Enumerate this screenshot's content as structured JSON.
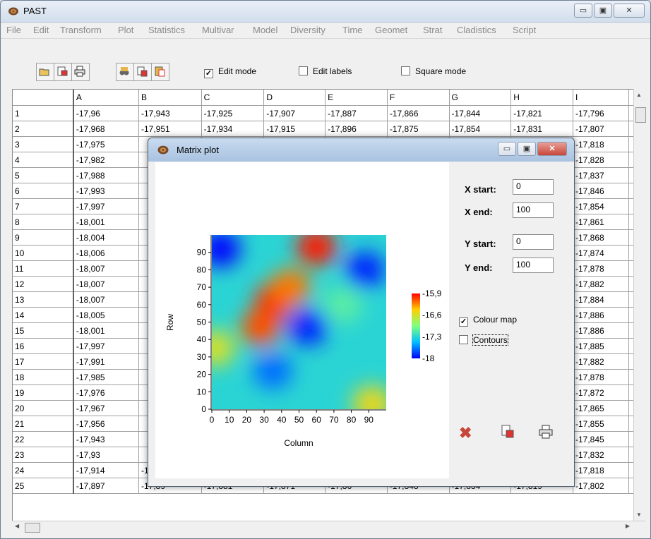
{
  "app": {
    "title": "PAST"
  },
  "menu": [
    "File",
    "Edit",
    "Transform",
    "Plot",
    "Statistics",
    "Multivar",
    "Model",
    "Diversity",
    "Time",
    "Geomet",
    "Strat",
    "Cladistics",
    "Script"
  ],
  "toolbar": {
    "edit_mode": {
      "label": "Edit mode",
      "checked": true
    },
    "edit_labels": {
      "label": "Edit labels",
      "checked": false
    },
    "square_mode": {
      "label": "Square mode",
      "checked": false
    }
  },
  "grid": {
    "columns": [
      "A",
      "B",
      "C",
      "D",
      "E",
      "F",
      "G",
      "H",
      "I"
    ],
    "rows": [
      {
        "label": "1",
        "cells": [
          "-17,96",
          "-17,943",
          "-17,925",
          "-17,907",
          "-17,887",
          "-17,866",
          "-17,844",
          "-17,821",
          "-17,796"
        ]
      },
      {
        "label": "2",
        "cells": [
          "-17,968",
          "-17,951",
          "-17,934",
          "-17,915",
          "-17,896",
          "-17,875",
          "-17,854",
          "-17,831",
          "-17,807"
        ]
      },
      {
        "label": "3",
        "cells": [
          "-17,975",
          "",
          "",
          "",
          "",
          "",
          "",
          "",
          "-17,818"
        ]
      },
      {
        "label": "4",
        "cells": [
          "-17,982",
          "",
          "",
          "",
          "",
          "",
          "",
          "",
          "-17,828"
        ]
      },
      {
        "label": "5",
        "cells": [
          "-17,988",
          "",
          "",
          "",
          "",
          "",
          "",
          "",
          "-17,837"
        ]
      },
      {
        "label": "6",
        "cells": [
          "-17,993",
          "",
          "",
          "",
          "",
          "",
          "",
          "",
          "-17,846"
        ]
      },
      {
        "label": "7",
        "cells": [
          "-17,997",
          "",
          "",
          "",
          "",
          "",
          "",
          "",
          "-17,854"
        ]
      },
      {
        "label": "8",
        "cells": [
          "-18,001",
          "",
          "",
          "",
          "",
          "",
          "",
          "",
          "-17,861"
        ]
      },
      {
        "label": "9",
        "cells": [
          "-18,004",
          "",
          "",
          "",
          "",
          "",
          "",
          "",
          "-17,868"
        ]
      },
      {
        "label": "10",
        "cells": [
          "-18,006",
          "",
          "",
          "",
          "",
          "",
          "",
          "",
          "-17,874"
        ]
      },
      {
        "label": "11",
        "cells": [
          "-18,007",
          "",
          "",
          "",
          "",
          "",
          "",
          "",
          "-17,878"
        ]
      },
      {
        "label": "12",
        "cells": [
          "-18,007",
          "",
          "",
          "",
          "",
          "",
          "",
          "",
          "-17,882"
        ]
      },
      {
        "label": "13",
        "cells": [
          "-18,007",
          "",
          "",
          "",
          "",
          "",
          "",
          "",
          "-17,884"
        ]
      },
      {
        "label": "14",
        "cells": [
          "-18,005",
          "",
          "",
          "",
          "",
          "",
          "",
          "",
          "-17,886"
        ]
      },
      {
        "label": "15",
        "cells": [
          "-18,001",
          "",
          "",
          "",
          "",
          "",
          "",
          "",
          "-17,886"
        ]
      },
      {
        "label": "16",
        "cells": [
          "-17,997",
          "",
          "",
          "",
          "",
          "",
          "",
          "",
          "-17,885"
        ]
      },
      {
        "label": "17",
        "cells": [
          "-17,991",
          "",
          "",
          "",
          "",
          "",
          "",
          "",
          "-17,882"
        ]
      },
      {
        "label": "18",
        "cells": [
          "-17,985",
          "",
          "",
          "",
          "",
          "",
          "",
          "",
          "-17,878"
        ]
      },
      {
        "label": "19",
        "cells": [
          "-17,976",
          "",
          "",
          "",
          "",
          "",
          "",
          "",
          "-17,872"
        ]
      },
      {
        "label": "20",
        "cells": [
          "-17,967",
          "",
          "",
          "",
          "",
          "",
          "",
          "",
          "-17,865"
        ]
      },
      {
        "label": "21",
        "cells": [
          "-17,956",
          "",
          "",
          "",
          "",
          "",
          "",
          "",
          "-17,855"
        ]
      },
      {
        "label": "22",
        "cells": [
          "-17,943",
          "",
          "",
          "",
          "",
          "",
          "",
          "",
          "-17,845"
        ]
      },
      {
        "label": "23",
        "cells": [
          "-17,93",
          "",
          "",
          "",
          "",
          "",
          "",
          "",
          "-17,832"
        ]
      },
      {
        "label": "24",
        "cells": [
          "-17,914",
          "-17,906",
          "-17,898",
          "-17,888",
          "-17,877",
          "-17,864",
          "-17,85",
          "-17,835",
          "-17,818"
        ]
      },
      {
        "label": "25",
        "cells": [
          "-17,897",
          "-17,89",
          "-17,881",
          "-17,871",
          "-17,86",
          "-17,848",
          "-17,834",
          "-17,819",
          "-17,802"
        ]
      }
    ]
  },
  "dialog": {
    "title": "Matrix plot",
    "x_start_label": "X start:",
    "x_start": "0",
    "x_end_label": "X end:",
    "x_end": "100",
    "y_start_label": "Y start:",
    "y_start": "0",
    "y_end_label": "Y end:",
    "y_end": "100",
    "colour_map": {
      "label": "Colour map",
      "checked": true
    },
    "contours": {
      "label": "Contours",
      "checked": false
    }
  },
  "chart_data": {
    "type": "heatmap",
    "title": "",
    "xlabel": "Column",
    "ylabel": "Row",
    "xlim": [
      0,
      100
    ],
    "ylim": [
      0,
      100
    ],
    "x_ticks": [
      "0",
      "10",
      "20",
      "30",
      "40",
      "50",
      "60",
      "70",
      "80",
      "90"
    ],
    "y_ticks": [
      "0",
      "10",
      "20",
      "30",
      "40",
      "50",
      "60",
      "70",
      "80",
      "90"
    ],
    "colorbar": {
      "ticks": [
        "-15,9",
        "-16,6",
        "-17,3",
        "-18"
      ],
      "range": [
        -18,
        -15.9
      ]
    },
    "hotspots": [
      {
        "x": 60,
        "y": 93,
        "value": -15.95
      },
      {
        "x": 36,
        "y": 62,
        "value": -16.0
      },
      {
        "x": 28,
        "y": 47,
        "value": -16.1
      },
      {
        "x": 45,
        "y": 70,
        "value": -16.2
      },
      {
        "x": 5,
        "y": 92,
        "value": -18.0
      },
      {
        "x": 88,
        "y": 80,
        "value": -17.9
      },
      {
        "x": 55,
        "y": 47,
        "value": -17.9
      },
      {
        "x": 35,
        "y": 22,
        "value": -17.7
      },
      {
        "x": 92,
        "y": 3,
        "value": -16.5
      },
      {
        "x": 2,
        "y": 35,
        "value": -16.6
      },
      {
        "x": 75,
        "y": 60,
        "value": -17.1
      }
    ],
    "background_value": -17.3
  },
  "colors": {
    "title_bar": "#d2deec",
    "dialog_title": "#a9c2e0",
    "close_red": "#c8453a"
  }
}
